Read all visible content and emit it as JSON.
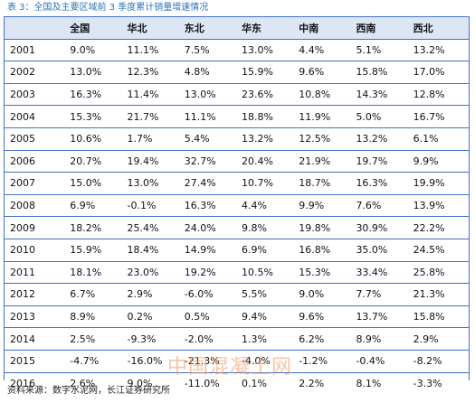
{
  "caption": "表 3：全国及主要区域前 3 季度累计销量增速情况",
  "headers": [
    "",
    "全国",
    "华北",
    "东北",
    "华东",
    "中南",
    "西南",
    "西北"
  ],
  "rows": [
    [
      "2001",
      "9.0%",
      "11.1%",
      "7.5%",
      "13.0%",
      "4.4%",
      "5.1%",
      "13.2%"
    ],
    [
      "2002",
      "13.0%",
      "12.3%",
      "4.8%",
      "15.9%",
      "9.6%",
      "15.8%",
      "17.0%"
    ],
    [
      "2003",
      "16.3%",
      "11.4%",
      "13.0%",
      "23.6%",
      "10.8%",
      "14.3%",
      "12.8%"
    ],
    [
      "2004",
      "15.3%",
      "21.7%",
      "11.1%",
      "18.8%",
      "11.9%",
      "5.0%",
      "16.7%"
    ],
    [
      "2005",
      "10.6%",
      "1.7%",
      "5.4%",
      "13.2%",
      "12.5%",
      "13.2%",
      "6.1%"
    ],
    [
      "2006",
      "20.7%",
      "19.4%",
      "32.7%",
      "20.4%",
      "21.9%",
      "19.7%",
      "9.9%"
    ],
    [
      "2007",
      "15.0%",
      "13.0%",
      "27.4%",
      "10.7%",
      "18.7%",
      "16.3%",
      "19.9%"
    ],
    [
      "2008",
      "6.9%",
      "-0.1%",
      "16.3%",
      "4.4%",
      "9.9%",
      "7.6%",
      "13.9%"
    ],
    [
      "2009",
      "18.2%",
      "25.4%",
      "24.0%",
      "9.8%",
      "19.8%",
      "30.9%",
      "22.2%"
    ],
    [
      "2010",
      "15.9%",
      "18.4%",
      "14.9%",
      "6.9%",
      "16.8%",
      "35.0%",
      "24.5%"
    ],
    [
      "2011",
      "18.1%",
      "23.0%",
      "19.2%",
      "10.5%",
      "15.3%",
      "33.4%",
      "25.8%"
    ],
    [
      "2012",
      "6.7%",
      "2.9%",
      "-6.0%",
      "5.5%",
      "9.0%",
      "7.7%",
      "21.3%"
    ],
    [
      "2013",
      "8.9%",
      "0.2%",
      "0.5%",
      "9.4%",
      "9.6%",
      "13.7%",
      "15.8%"
    ],
    [
      "2014",
      "2.5%",
      "-9.3%",
      "-2.0%",
      "1.3%",
      "6.2%",
      "8.9%",
      "2.9%"
    ],
    [
      "2015",
      "-4.7%",
      "-16.0%",
      "-21.3%",
      "-4.0%",
      "-1.2%",
      "-0.4%",
      "-8.2%"
    ],
    [
      "2016",
      "2.6%",
      "9.0%",
      "-11.0%",
      "0.1%",
      "2.2%",
      "8.1%",
      "-3.3%"
    ]
  ],
  "source": "资料来源：数字水泥网，长江证券研究所",
  "watermark": "中国混凝土网"
}
